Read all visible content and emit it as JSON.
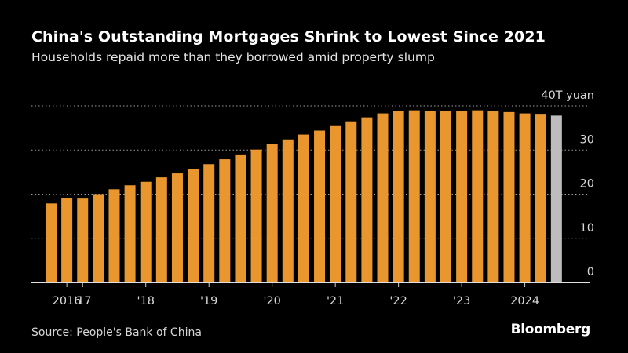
{
  "title": "China's Outstanding Mortgages Shrink to Lowest Since 2021",
  "subtitle": "Households repaid more than they borrowed amid property slump",
  "source": "Source: People's Bank of China",
  "brand": "Bloomberg",
  "colors": {
    "bar": "#e8962d",
    "last_bar": "#bdbdbd",
    "grid": "#9a9a9a",
    "background": "#000000"
  },
  "chart_data": {
    "type": "bar",
    "unit_label": "40T yuan",
    "ylim": [
      0,
      40
    ],
    "yticks": [
      {
        "value": 0,
        "label": "0"
      },
      {
        "value": 10,
        "label": "10"
      },
      {
        "value": 20,
        "label": "20"
      },
      {
        "value": 30,
        "label": "30"
      },
      {
        "value": 40,
        "label": "40T yuan"
      }
    ],
    "grid": true,
    "categories": [
      "2016 Q1",
      "2016 Q2",
      "2016 Q3",
      "2016 Q4",
      "2017 Q1",
      "2017 Q2",
      "2017 Q3",
      "2017 Q4",
      "2018 Q1",
      "2018 Q2",
      "2018 Q3",
      "2018 Q4",
      "2019 Q1",
      "2019 Q2",
      "2019 Q3",
      "2019 Q4",
      "2020 Q1",
      "2020 Q2",
      "2020 Q3",
      "2020 Q4",
      "2021 Q1",
      "2021 Q2",
      "2021 Q3",
      "2021 Q4",
      "2022 Q1",
      "2022 Q2",
      "2022 Q3",
      "2022 Q4",
      "2023 Q1",
      "2023 Q2",
      "2023 Q3",
      "2023 Q4",
      "2024 Q1"
    ],
    "values": [
      17.9,
      19.1,
      19.0,
      20.0,
      21.1,
      22.0,
      22.8,
      23.8,
      24.7,
      25.7,
      26.8,
      27.9,
      29.0,
      30.1,
      31.3,
      32.4,
      33.5,
      34.4,
      35.6,
      36.5,
      37.4,
      38.3,
      38.9,
      39.0,
      38.9,
      38.9,
      38.9,
      39.0,
      38.8,
      38.6,
      38.3,
      38.2,
      37.8
    ],
    "highlight_last": true,
    "xtick_labels": [
      {
        "index": 1,
        "label": "2016"
      },
      {
        "index": 2,
        "label": "'17"
      },
      {
        "index": 6,
        "label": "'18"
      },
      {
        "index": 10,
        "label": "'19"
      },
      {
        "index": 14,
        "label": "'20"
      },
      {
        "index": 18,
        "label": "'21"
      },
      {
        "index": 22,
        "label": "'22"
      },
      {
        "index": 26,
        "label": "'23"
      },
      {
        "index": 30,
        "label": "2024"
      }
    ]
  }
}
